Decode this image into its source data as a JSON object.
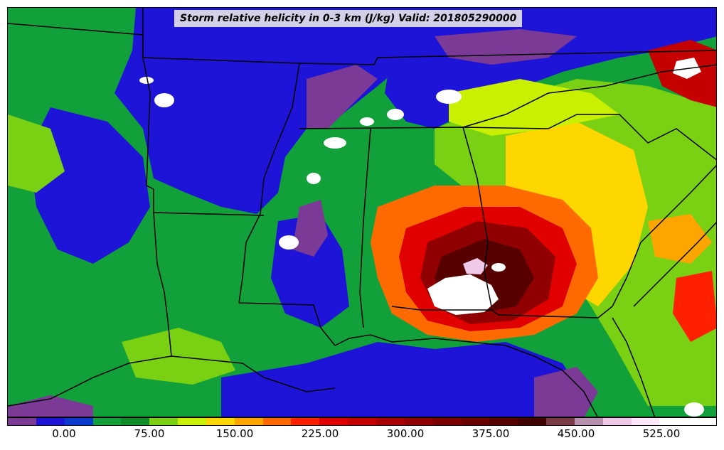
{
  "title": "Storm relative helicity in 0-3 km (J/kg) Valid: 201805290000",
  "colorbar": {
    "colors": [
      "#7b3a96",
      "#1e14d8",
      "#0a3ad0",
      "#12a03a",
      "#0e8c2a",
      "#7ad012",
      "#c8f000",
      "#ffd700",
      "#ffa500",
      "#ff6a00",
      "#ff2000",
      "#e00000",
      "#c40000",
      "#a80000",
      "#900000",
      "#7c0000",
      "#6a0000",
      "#560000",
      "#420000",
      "#7a3a46",
      "#b890b0",
      "#f0c8e8",
      "#ffe8fb",
      "#ffffff",
      "#ffffff"
    ],
    "ticks": [
      "0.00",
      "75.00",
      "150.00",
      "225.00",
      "300.00",
      "375.00",
      "450.00",
      "525.00"
    ]
  },
  "legend_colors": {
    "negative": "#7b3a96",
    "low": "#1e14d8",
    "moderate": "#12a03a",
    "elevated": "#c8f000",
    "high": "#ff2000",
    "very_high": "#6a0000",
    "extreme": "#ffffff"
  }
}
